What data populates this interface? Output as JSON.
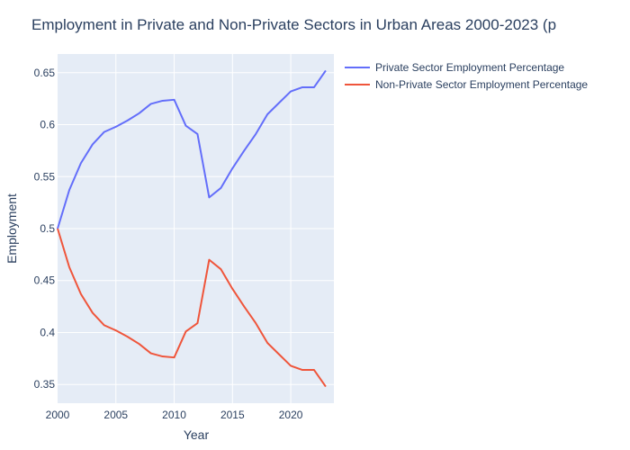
{
  "chart_data": {
    "type": "line",
    "title": "Employment in Private and Non-Private Sectors in Urban Areas 2000-2023 (p",
    "xlabel": "Year",
    "ylabel": "Employment",
    "xlim": [
      2000,
      2023.7
    ],
    "ylim": [
      0.332,
      0.668
    ],
    "x_ticks": [
      2000,
      2005,
      2010,
      2015,
      2020
    ],
    "y_ticks": [
      0.35,
      0.4,
      0.45,
      0.5,
      0.55,
      0.6,
      0.65
    ],
    "y_tick_labels": [
      "0.35",
      "0.4",
      "0.45",
      "0.5",
      "0.55",
      "0.6",
      "0.65"
    ],
    "grid": true,
    "legend_position": "top-right, outside plot",
    "x": [
      2000,
      2001,
      2002,
      2003,
      2004,
      2005,
      2006,
      2007,
      2008,
      2009,
      2010,
      2011,
      2012,
      2013,
      2014,
      2015,
      2016,
      2017,
      2018,
      2019,
      2020,
      2021,
      2022,
      2023
    ],
    "series": [
      {
        "name": "Private Sector Employment Percentage",
        "color": "#636efa",
        "values": [
          0.5,
          0.537,
          0.563,
          0.581,
          0.593,
          0.598,
          0.604,
          0.611,
          0.62,
          0.623,
          0.624,
          0.599,
          0.591,
          0.53,
          0.539,
          0.558,
          0.575,
          0.591,
          0.61,
          0.621,
          0.632,
          0.636,
          0.636,
          0.652
        ]
      },
      {
        "name": "Non-Private Sector Employment Percentage",
        "color": "#ef553b",
        "values": [
          0.5,
          0.463,
          0.437,
          0.419,
          0.407,
          0.402,
          0.396,
          0.389,
          0.38,
          0.377,
          0.376,
          0.401,
          0.409,
          0.47,
          0.461,
          0.442,
          0.425,
          0.409,
          0.39,
          0.379,
          0.368,
          0.364,
          0.364,
          0.348
        ]
      }
    ]
  }
}
